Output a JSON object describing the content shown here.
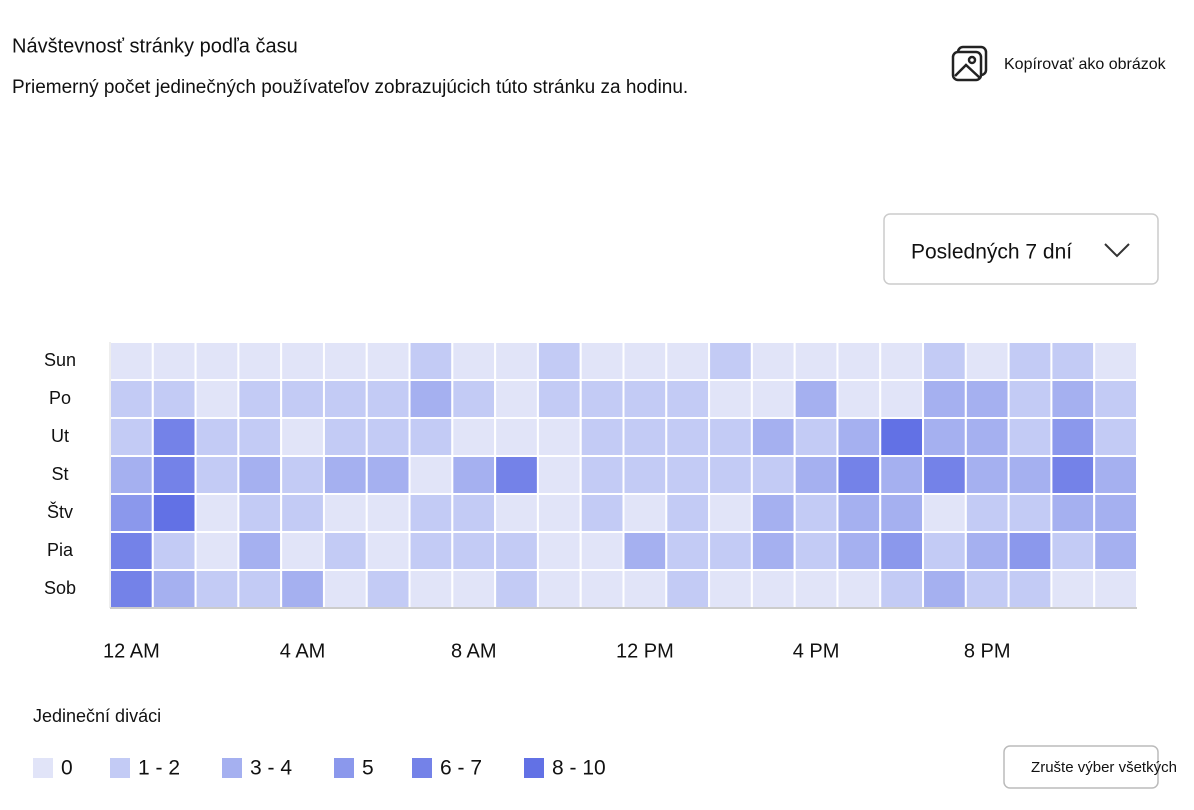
{
  "ui": {
    "copy_button": "Kopírovať ako obrázok",
    "range_select": "Posledných 7 dní",
    "clear_button": "Zrušte výber všetkých"
  },
  "chart_data": {
    "type": "heatmap",
    "title": "Návštevnosť stránky podľa času",
    "subtitle": "Priemerný počet jedinečných používateľov zobrazujúcich túto stránku za hodinu.",
    "x": [
      "12 AM",
      null,
      null,
      null,
      "4 AM",
      null,
      null,
      null,
      "8 AM",
      null,
      null,
      null,
      "12 PM",
      null,
      null,
      null,
      "4 PM",
      null,
      null,
      null,
      "8 PM",
      null,
      null,
      null
    ],
    "y_categories": [
      "Sun",
      "Po",
      "Ut",
      "St",
      "Štv",
      "Pia",
      "Sob"
    ],
    "values": [
      [
        0,
        0,
        0,
        0,
        0,
        0,
        0,
        1,
        0,
        0,
        1,
        0,
        0,
        0,
        1,
        0,
        0,
        0,
        0,
        1,
        0,
        1,
        1,
        0
      ],
      [
        1,
        1,
        0,
        1,
        1,
        1,
        1,
        3,
        1,
        0,
        1,
        1,
        1,
        1,
        0,
        0,
        3,
        0,
        0,
        3,
        3,
        1,
        3,
        1
      ],
      [
        1,
        7,
        1,
        1,
        0,
        1,
        1,
        1,
        0,
        0,
        0,
        1,
        1,
        1,
        1,
        3,
        1,
        3,
        9,
        3,
        3,
        1,
        5,
        1
      ],
      [
        3,
        7,
        1,
        3,
        1,
        3,
        3,
        0,
        3,
        7,
        0,
        1,
        1,
        1,
        1,
        1,
        3,
        7,
        3,
        7,
        3,
        3,
        7,
        3
      ],
      [
        5,
        9,
        0,
        1,
        1,
        0,
        0,
        1,
        1,
        0,
        0,
        1,
        0,
        1,
        0,
        3,
        1,
        3,
        3,
        0,
        1,
        1,
        3,
        3
      ],
      [
        7,
        1,
        0,
        3,
        0,
        1,
        0,
        1,
        1,
        1,
        0,
        0,
        3,
        1,
        1,
        3,
        1,
        3,
        5,
        1,
        3,
        5,
        1,
        3
      ],
      [
        7,
        3,
        1,
        1,
        3,
        0,
        1,
        0,
        0,
        1,
        0,
        0,
        0,
        1,
        0,
        0,
        0,
        0,
        1,
        3,
        1,
        1,
        0,
        0
      ]
    ],
    "legend": {
      "title": "Jedineční diváci",
      "bins": [
        {
          "label": "0",
          "min": 0,
          "max": 0,
          "color": "#e1e4f8"
        },
        {
          "label": "1 - 2",
          "min": 1,
          "max": 2,
          "color": "#c3cbf5"
        },
        {
          "label": "3 - 4",
          "min": 3,
          "max": 4,
          "color": "#a5b0f0"
        },
        {
          "label": "5",
          "min": 5,
          "max": 5,
          "color": "#8b98ec"
        },
        {
          "label": "6 - 7",
          "min": 6,
          "max": 7,
          "color": "#7482e8"
        },
        {
          "label": "8 - 10",
          "min": 8,
          "max": 10,
          "color": "#6271e5"
        }
      ]
    }
  }
}
